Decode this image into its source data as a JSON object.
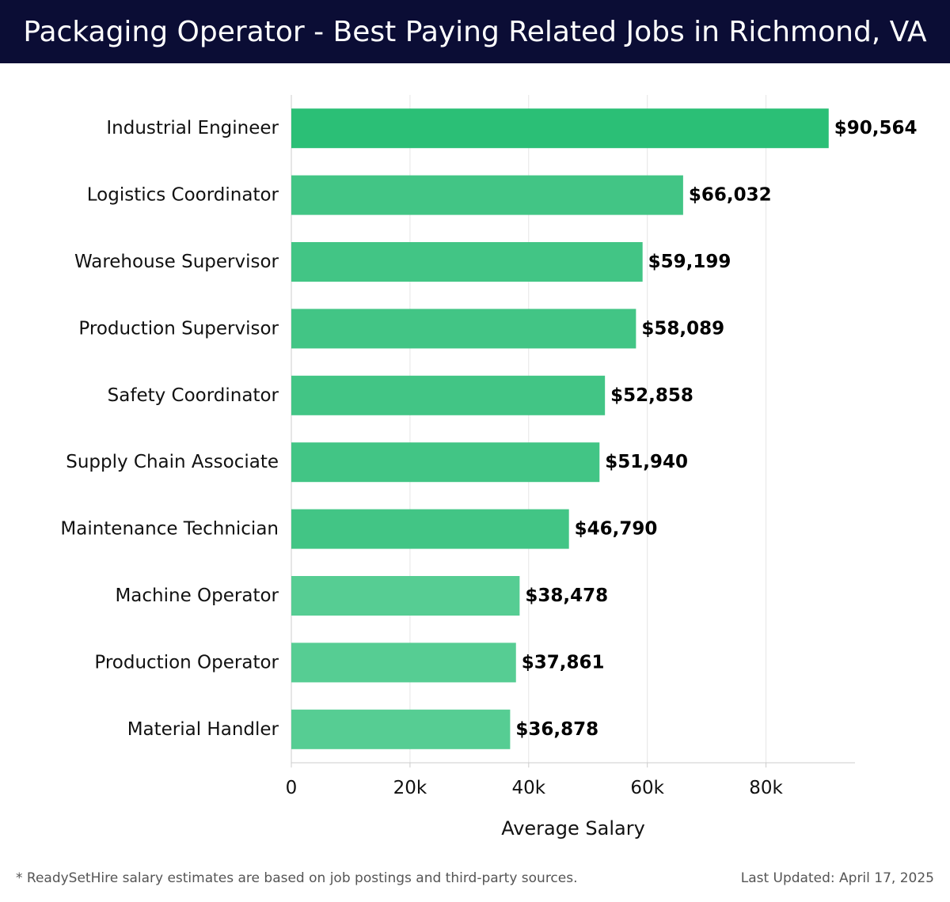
{
  "header": {
    "title": "Packaging Operator - Best Paying Related Jobs in Richmond, VA"
  },
  "chart_data": {
    "type": "bar",
    "orientation": "horizontal",
    "categories": [
      "Industrial Engineer",
      "Logistics Coordinator",
      "Warehouse Supervisor",
      "Production Supervisor",
      "Safety Coordinator",
      "Supply Chain Associate",
      "Maintenance Technician",
      "Machine Operator",
      "Production Operator",
      "Material Handler"
    ],
    "values": [
      90564,
      66032,
      59199,
      58089,
      52858,
      51940,
      46790,
      38478,
      37861,
      36878
    ],
    "value_labels": [
      "$90,564",
      "$66,032",
      "$59,199",
      "$58,089",
      "$52,858",
      "$51,940",
      "$46,790",
      "$38,478",
      "$37,861",
      "$36,878"
    ],
    "xlabel": "Average Salary",
    "xlim": [
      0,
      95000
    ],
    "xticks": [
      0,
      20000,
      40000,
      60000,
      80000
    ],
    "xtick_labels": [
      "0",
      "20k",
      "40k",
      "60k",
      "80k"
    ],
    "grid": "vertical",
    "colors": {
      "top_bar": "#2bbf76",
      "mid_bar": "#42c585",
      "low_bar": "#56cd93",
      "gridline": "#e6e6e6",
      "axis": "#cccccc"
    }
  },
  "footer": {
    "note": "* ReadySetHire salary estimates are based on job postings and third-party sources.",
    "updated": "Last Updated: April 17, 2025"
  }
}
